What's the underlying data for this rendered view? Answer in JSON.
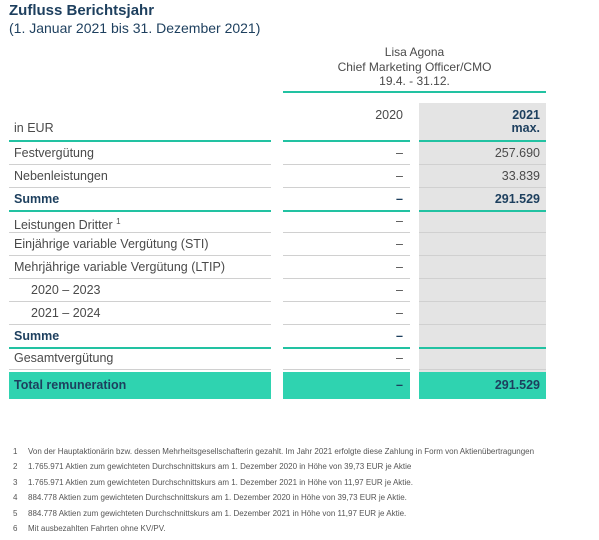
{
  "header": {
    "title": "Zufluss Berichtsjahr",
    "subtitle": "(1. Januar 2021 bis 31. Dezember 2021)"
  },
  "table": {
    "person": {
      "name": "Lisa Agona",
      "role": "Chief Marketing Officer/CMO",
      "period": "19.4. -  31.12."
    },
    "columns": {
      "label": "in EUR",
      "prev": "2020",
      "curr": "2021",
      "curr_note": "max."
    },
    "rows": [
      {
        "label": "Festvergütung",
        "prev": "–",
        "curr": "257.690"
      },
      {
        "label": "Nebenleistungen",
        "prev": "–",
        "curr": "33.839"
      },
      {
        "label": "Summe",
        "prev": "–",
        "curr": "291.529"
      },
      {
        "label": "Leistungen Dritter",
        "note": "1",
        "prev": "–"
      },
      {
        "label": "Einjährige variable Vergütung (STI)",
        "prev": "–"
      },
      {
        "label": "Mehrjährige variable Vergütung (LTIP)",
        "prev": "–"
      },
      {
        "label": "2020 – 2023",
        "prev": "–"
      },
      {
        "label": "2021 – 2024",
        "prev": "–"
      },
      {
        "label": "Summe",
        "prev": "–"
      },
      {
        "label": "Gesamtvergütung",
        "prev": "–"
      },
      {
        "label": "Total remuneration",
        "prev": "–",
        "curr": "291.529"
      }
    ]
  },
  "footnotes": [
    {
      "marker": "1",
      "text": "Von der Hauptaktionärin bzw. dessen Mehrheitsgesellschafterin gezahlt. Im Jahr 2021 erfolgte diese Zahlung in Form von Aktienübertragungen"
    },
    {
      "marker": "2",
      "text": "1.765.971 Aktien zum gewichteten Durchschnittskurs am 1. Dezember 2020 in Höhe von 39,73 EUR je Aktie"
    },
    {
      "marker": "3",
      "text": "1.765.971 Aktien zum gewichteten Durchschnittskurs am 1. Dezember 2021 in Höhe von 11,97 EUR je Aktie."
    },
    {
      "marker": "4",
      "text": "884.778 Aktien zum gewichteten Durchschnittskurs am 1. Dezember 2020 in Höhe von 39,73 EUR je Aktie."
    },
    {
      "marker": "5",
      "text": "884.778 Aktien zum gewichteten Durchschnittskurs am 1. Dezember 2021 in Höhe von 11,97 EUR je Aktie."
    },
    {
      "marker": "6",
      "text": "Mit ausbezahlten Fahrten ohne KV/PV."
    }
  ]
}
